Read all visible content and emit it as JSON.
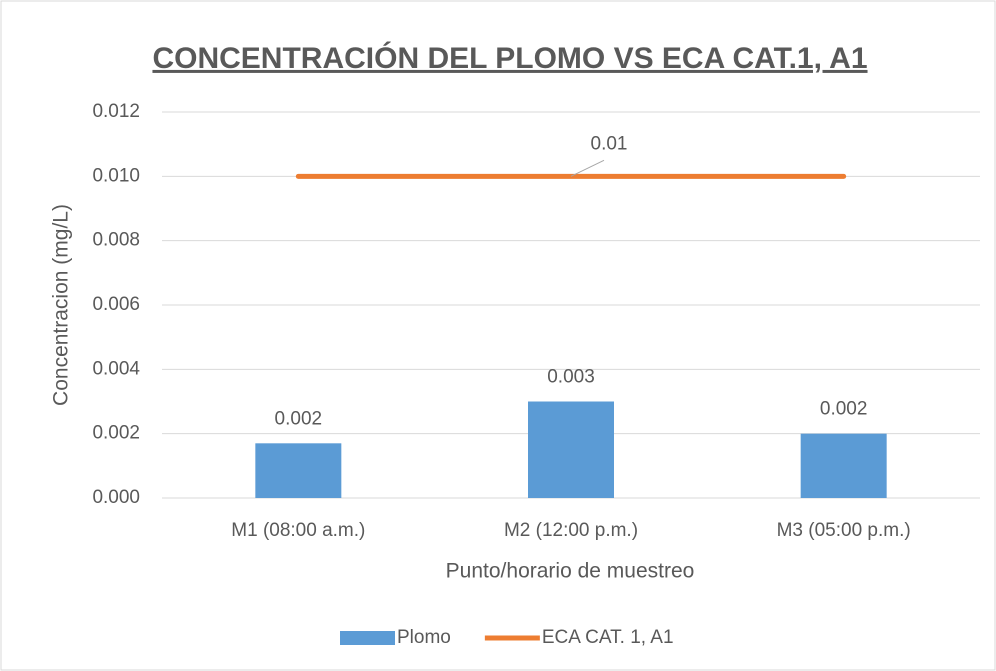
{
  "chart_data": {
    "type": "bar",
    "title": "CONCENTRACIÓN DEL PLOMO VS ECA CAT.1, A1",
    "x_label": "Punto/horario de muestreo",
    "y_label": "Concentracion (mg/L)",
    "categories": [
      "M1 (08:00 a.m.)",
      "M2 (12:00 p.m.)",
      "M3 (05:00 p.m.)"
    ],
    "series": [
      {
        "name": "Plomo",
        "type": "bar",
        "color": "#5b9bd5",
        "values": [
          0.0017,
          0.003,
          0.002
        ],
        "value_labels": [
          "0.002",
          "0.003",
          "0.002"
        ]
      },
      {
        "name": "ECA CAT. 1, A1",
        "type": "line",
        "color": "#ed7d31",
        "values": [
          0.01,
          0.01,
          0.01
        ],
        "value_labels": [
          null,
          "0.01",
          null
        ]
      }
    ],
    "ylim": [
      0,
      0.012
    ],
    "yticks": [
      {
        "value": 0,
        "label": "0.000"
      },
      0.002,
      0.004,
      0.006,
      0.008,
      {
        "value": 0.01,
        "label": "0.010"
      },
      0.012
    ],
    "grid": true,
    "legend": "bottom"
  }
}
